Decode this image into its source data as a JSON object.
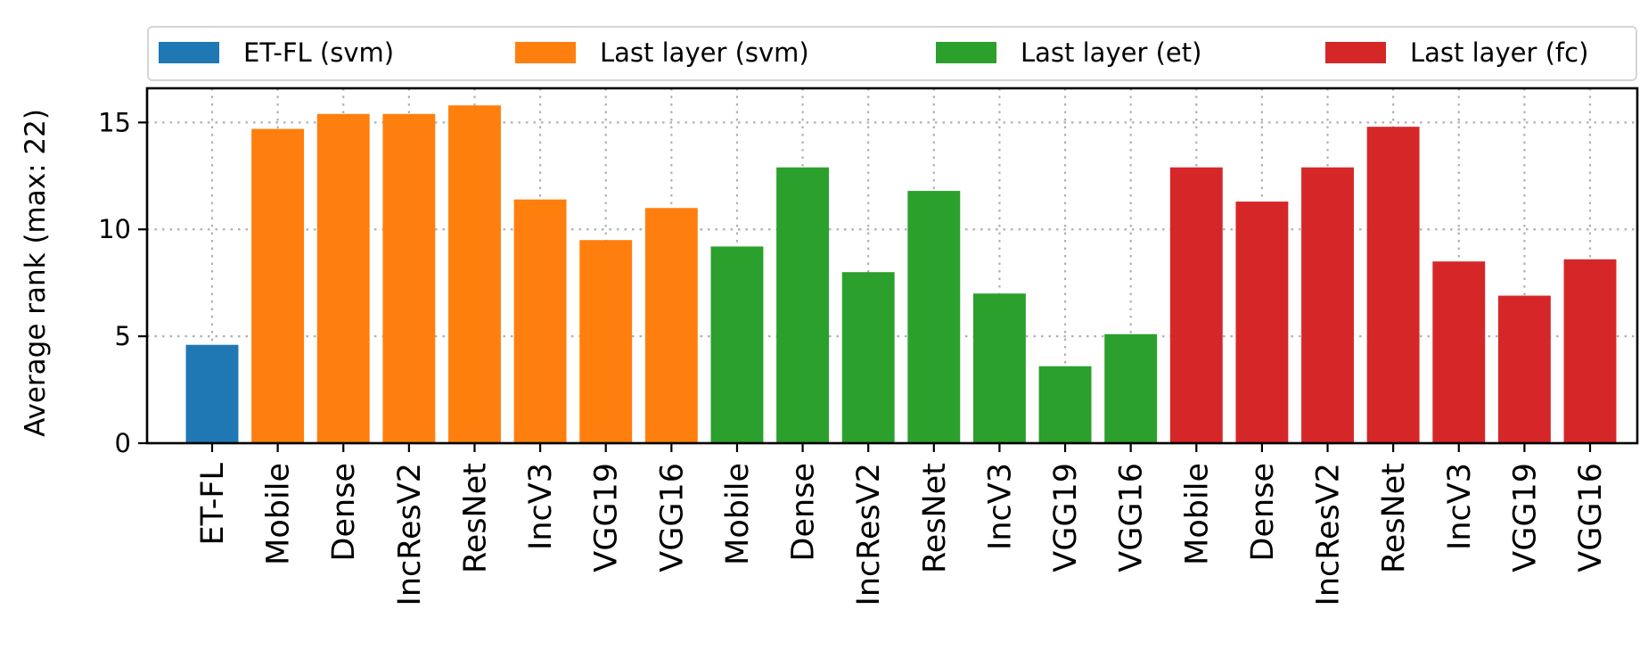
{
  "chart_data": {
    "type": "bar",
    "title": "",
    "xlabel": "",
    "ylabel": "Average rank (max: 22)",
    "ylim": [
      0,
      16.6
    ],
    "yticks": [
      0,
      5,
      10,
      15
    ],
    "grid": true,
    "legend_position": "top",
    "series": [
      {
        "name": "ET-FL (svm)",
        "color": "#1f77b4",
        "categories": [
          "ET-FL"
        ],
        "values": [
          4.6
        ]
      },
      {
        "name": "Last layer (svm)",
        "color": "#ff7f0e",
        "categories": [
          "Mobile",
          "Dense",
          "IncResV2",
          "ResNet",
          "IncV3",
          "VGG19",
          "VGG16"
        ],
        "values": [
          14.7,
          15.4,
          15.4,
          15.8,
          11.4,
          9.5,
          11.0
        ]
      },
      {
        "name": "Last layer (et)",
        "color": "#2ca02c",
        "categories": [
          "Mobile",
          "Dense",
          "IncResV2",
          "ResNet",
          "IncV3",
          "VGG19",
          "VGG16"
        ],
        "values": [
          9.2,
          12.9,
          8.0,
          11.8,
          7.0,
          3.6,
          5.1
        ]
      },
      {
        "name": "Last layer (fc)",
        "color": "#d62728",
        "categories": [
          "Mobile",
          "Dense",
          "IncResV2",
          "ResNet",
          "IncV3",
          "VGG19",
          "VGG16"
        ],
        "values": [
          12.9,
          11.3,
          12.9,
          14.8,
          8.5,
          6.9,
          8.6
        ]
      }
    ]
  }
}
